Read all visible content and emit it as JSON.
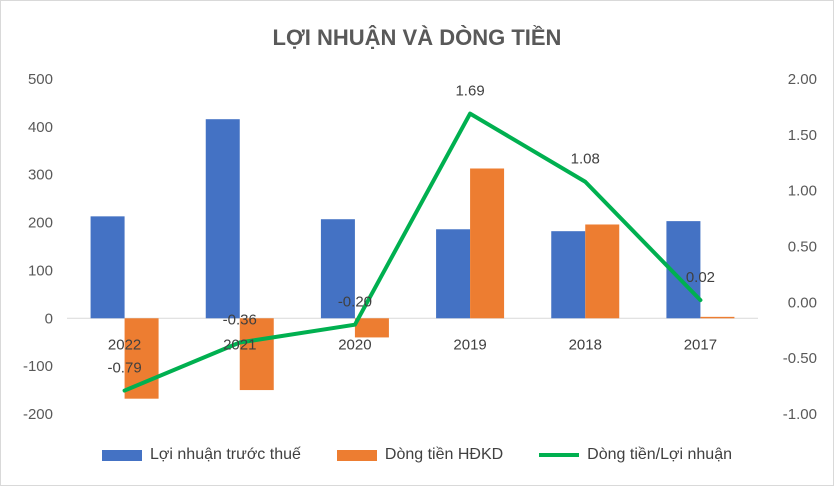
{
  "chart_data": {
    "type": "bar",
    "title": "LỢI NHUẬN VÀ DÒNG TIỀN",
    "categories": [
      "2022",
      "2021",
      "2020",
      "2019",
      "2018",
      "2017"
    ],
    "series": [
      {
        "name": "Lợi nhuận trước thuế",
        "kind": "bar",
        "axis": "left",
        "color": "#4472c4",
        "values": [
          213,
          416,
          207,
          186,
          182,
          203
        ]
      },
      {
        "name": "Dòng tiền HĐKD",
        "kind": "bar",
        "axis": "left",
        "color": "#ed7d31",
        "values": [
          -168,
          -150,
          -40,
          313,
          196,
          3
        ]
      },
      {
        "name": "Dòng tiền/Lợi nhuận",
        "kind": "line",
        "axis": "right",
        "color": "#00b050",
        "values": [
          -0.79,
          -0.36,
          -0.2,
          1.69,
          1.08,
          0.02
        ],
        "labels": [
          "-0.79",
          "-0.36",
          "-0.20",
          "1.69",
          "1.08",
          "0.02"
        ]
      }
    ],
    "y_left": {
      "min": -200,
      "max": 500,
      "step": 100,
      "ticks": [
        "-200",
        "-100",
        "0",
        "100",
        "200",
        "300",
        "400",
        "500"
      ]
    },
    "y_right": {
      "min": -1.0,
      "max": 2.0,
      "step": 0.5,
      "ticks": [
        "-1.00",
        "-0.50",
        "0.00",
        "0.50",
        "1.00",
        "1.50",
        "2.00"
      ]
    },
    "grid": false,
    "legend_position": "bottom"
  }
}
